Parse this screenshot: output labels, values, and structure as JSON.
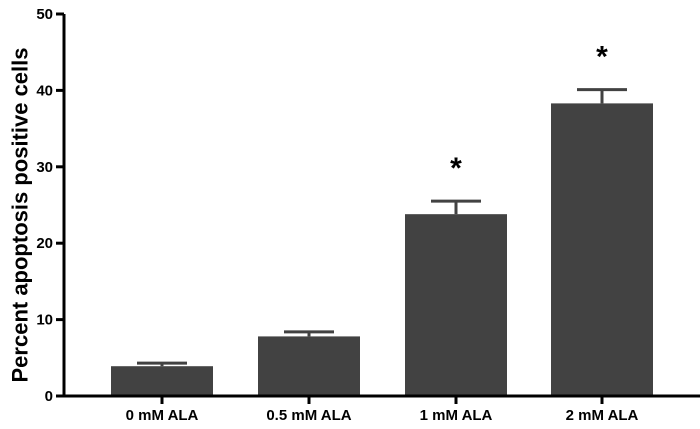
{
  "chart_data": {
    "type": "bar",
    "title": "",
    "xlabel": "",
    "ylabel": "Percent apoptosis positive cells",
    "ylim": [
      0,
      50
    ],
    "yticks": [
      0,
      10,
      20,
      30,
      40,
      50
    ],
    "categories": [
      "0 mM ALA",
      "0.5 mM ALA",
      "1 mM ALA",
      "2 mM ALA"
    ],
    "values": [
      3.9,
      7.8,
      23.8,
      38.3
    ],
    "error": [
      0.4,
      0.6,
      1.7,
      1.8
    ],
    "annotations": [
      "",
      "",
      "*",
      "*"
    ],
    "grid": false,
    "legend": "none",
    "bar_color": "#424242"
  }
}
